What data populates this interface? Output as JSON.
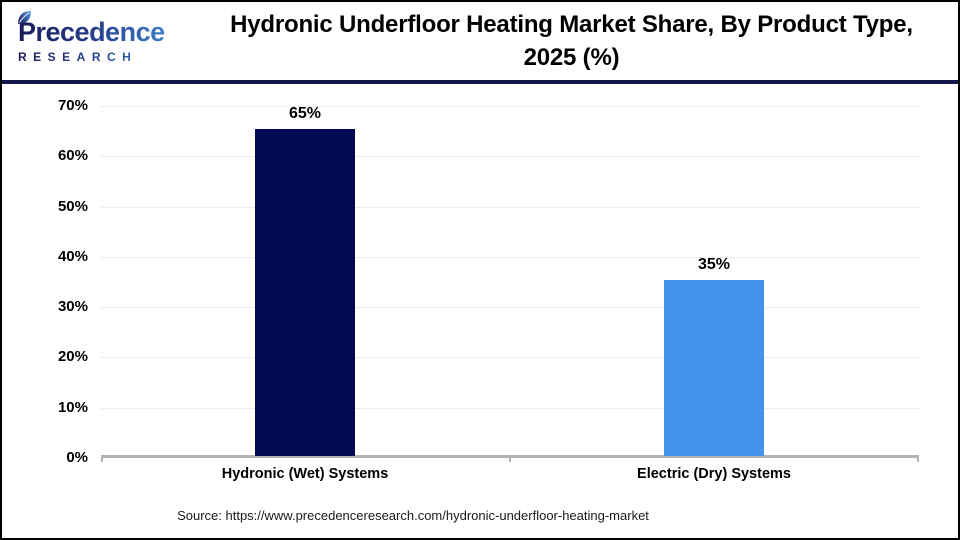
{
  "header": {
    "logo": {
      "wordmark": "Precedence",
      "subtitle": "RESEARCH"
    },
    "title_line1": "Hydronic Underfloor Heating Market Share, By Product Type,",
    "title_line2": "2025 (%)"
  },
  "chart_data": {
    "type": "bar",
    "title": "Hydronic Underfloor Heating Market Share, By Product Type, 2025 (%)",
    "categories": [
      "Hydronic (Wet) Systems",
      "Electric (Dry) Systems"
    ],
    "values": [
      65,
      35
    ],
    "value_labels": [
      "65%",
      "35%"
    ],
    "bar_colors": [
      "#010a52",
      "#4492ee"
    ],
    "ylim": [
      0,
      70
    ],
    "ytick_step": 10,
    "yticks": [
      "70%",
      "60%",
      "50%",
      "40%",
      "30%",
      "20%",
      "10%",
      "0%"
    ],
    "grid": "horizontal-light",
    "legend": "none",
    "xlabel": "",
    "ylabel": "",
    "source": "Source: https://www.precedenceresearch.com/hydronic-underfloor-heating-market"
  },
  "colors": {
    "bar_navy": "#010a52",
    "bar_blue": "#4492ee",
    "header_rule": "#15154e",
    "axis_line": "#b3b3b3",
    "gridline": "#ececec",
    "logo_gradient_start": "#1b1b57",
    "logo_gradient_end": "#4a9be8"
  }
}
